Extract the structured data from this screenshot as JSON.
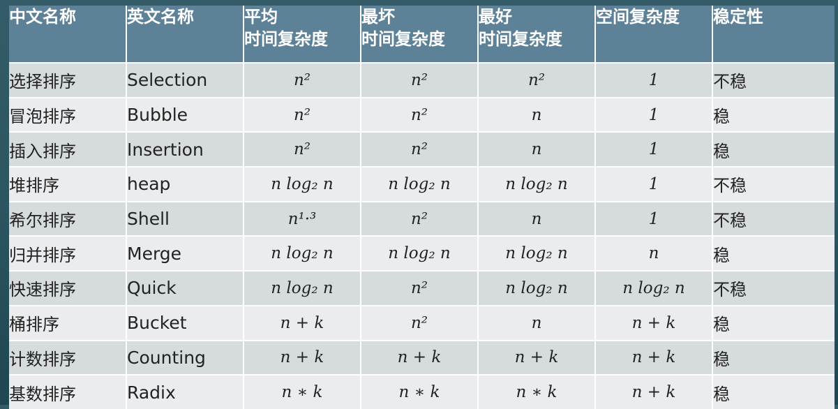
{
  "table": {
    "headers": [
      {
        "lines": [
          "中文名称"
        ]
      },
      {
        "lines": [
          "英文名称"
        ]
      },
      {
        "lines": [
          "平均",
          "时间复杂度"
        ]
      },
      {
        "lines": [
          "最坏",
          "时间复杂度"
        ]
      },
      {
        "lines": [
          "最好",
          "时间复杂度"
        ]
      },
      {
        "lines": [
          "空间复杂度"
        ]
      },
      {
        "lines": [
          "稳定性"
        ]
      }
    ],
    "rows": [
      {
        "cn": "选择排序",
        "en": "Selection",
        "avg": "n²",
        "worst": "n²",
        "best": "n²",
        "space": "1",
        "stability": "不稳"
      },
      {
        "cn": "冒泡排序",
        "en": "Bubble",
        "avg": "n²",
        "worst": "n²",
        "best": "n",
        "space": "1",
        "stability": "稳"
      },
      {
        "cn": "插入排序",
        "en": "Insertion",
        "avg": "n²",
        "worst": "n²",
        "best": "n",
        "space": "1",
        "stability": "稳"
      },
      {
        "cn": "堆排序",
        "en": "heap",
        "avg": "n log₂ n",
        "worst": "n log₂ n",
        "best": "n log₂ n",
        "space": "1",
        "stability": "不稳"
      },
      {
        "cn": "希尔排序",
        "en": "Shell",
        "avg": "n¹·³",
        "worst": "n²",
        "best": "n",
        "space": "1",
        "stability": "不稳"
      },
      {
        "cn": "归并排序",
        "en": "Merge",
        "avg": "n log₂ n",
        "worst": "n log₂ n",
        "best": "n log₂ n",
        "space": "n",
        "stability": "稳"
      },
      {
        "cn": "快速排序",
        "en": "Quick",
        "avg": "n log₂ n",
        "worst": "n²",
        "best": "n log₂ n",
        "space": "n log₂ n",
        "stability": "不稳"
      },
      {
        "cn": "桶排序",
        "en": "Bucket",
        "avg": "n + k",
        "worst": "n²",
        "best": "n",
        "space": "n + k",
        "stability": "稳"
      },
      {
        "cn": "计数排序",
        "en": "Counting",
        "avg": "n + k",
        "worst": "n + k",
        "best": "n + k",
        "space": "n + k",
        "stability": "稳"
      },
      {
        "cn": "基数排序",
        "en": "Radix",
        "avg": "n ∗ k",
        "worst": "n ∗ k",
        "best": "n ∗ k",
        "space": "n + k",
        "stability": "稳"
      }
    ]
  }
}
